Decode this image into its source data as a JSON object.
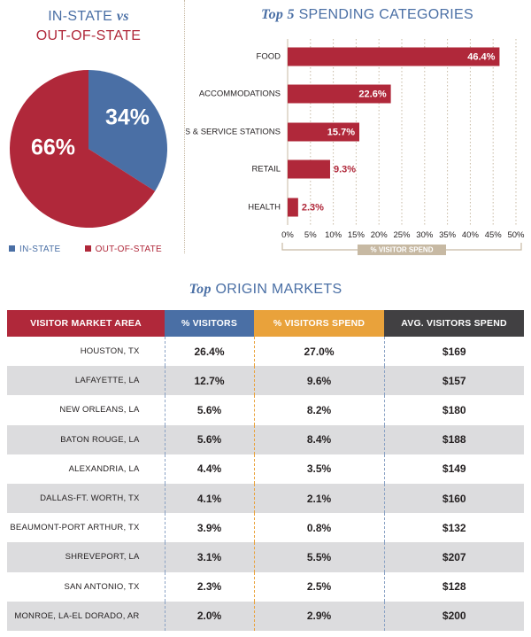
{
  "pie_title": {
    "line1_prefix": "IN-STATE",
    "vs": "vs",
    "line2": "OUT-OF-STATE"
  },
  "bar_title": {
    "prefix": "Top 5",
    "rest": "SPENDING CATEGORIES"
  },
  "table_title": {
    "prefix": "Top",
    "rest": "ORIGIN MARKETS"
  },
  "colors": {
    "red": "#b0283a",
    "blue": "#4a6fa5",
    "orange": "#e9a23b",
    "dark": "#414042",
    "tan": "#c7b9a3"
  },
  "chart_data": [
    {
      "type": "pie",
      "title": "IN-STATE vs OUT-OF-STATE",
      "slices": [
        {
          "name": "IN-STATE",
          "value": 34,
          "label": "34%",
          "color": "#4a6fa5"
        },
        {
          "name": "OUT-OF-STATE",
          "value": 66,
          "label": "66%",
          "color": "#b0283a"
        }
      ],
      "legend": [
        "IN-STATE",
        "OUT-OF-STATE"
      ],
      "legend_position": "bottom"
    },
    {
      "type": "bar",
      "orientation": "horizontal",
      "title": "Top 5 SPENDING CATEGORIES",
      "categories": [
        "FOOD",
        "ACCOMMODATIONS",
        "GAS & SERVICE STATIONS",
        "RETAIL",
        "HEALTH"
      ],
      "values": [
        46.4,
        22.6,
        15.7,
        9.3,
        2.3
      ],
      "data_labels": [
        "46.4%",
        "22.6%",
        "15.7%",
        "9.3%",
        "2.3%"
      ],
      "xlim": [
        0,
        50
      ],
      "xticks": [
        "0%",
        "5%",
        "10%",
        "15%",
        "20%",
        "25%",
        "30%",
        "35%",
        "40%",
        "45%",
        "50%"
      ],
      "xlabel": "% VISITOR SPEND",
      "color": "#b0283a"
    },
    {
      "type": "table",
      "title": "Top ORIGIN MARKETS",
      "columns": [
        "VISITOR MARKET AREA",
        "% VISITORS",
        "% VISITORS SPEND",
        "AVG. VISITORS SPEND"
      ],
      "rows": [
        [
          "HOUSTON, TX",
          "26.4%",
          "27.0%",
          "$169"
        ],
        [
          "LAFAYETTE, LA",
          "12.7%",
          "9.6%",
          "$157"
        ],
        [
          "NEW ORLEANS, LA",
          "5.6%",
          "8.2%",
          "$180"
        ],
        [
          "BATON ROUGE, LA",
          "5.6%",
          "8.4%",
          "$188"
        ],
        [
          "ALEXANDRIA, LA",
          "4.4%",
          "3.5%",
          "$149"
        ],
        [
          "DALLAS-FT. WORTH, TX",
          "4.1%",
          "2.1%",
          "$160"
        ],
        [
          "BEAUMONT-PORT ARTHUR, TX",
          "3.9%",
          "0.8%",
          "$132"
        ],
        [
          "SHREVEPORT, LA",
          "3.1%",
          "5.5%",
          "$207"
        ],
        [
          "SAN ANTONIO, TX",
          "2.3%",
          "2.5%",
          "$128"
        ],
        [
          "MONROE, LA-EL DORADO, AR",
          "2.0%",
          "2.9%",
          "$200"
        ]
      ]
    }
  ]
}
